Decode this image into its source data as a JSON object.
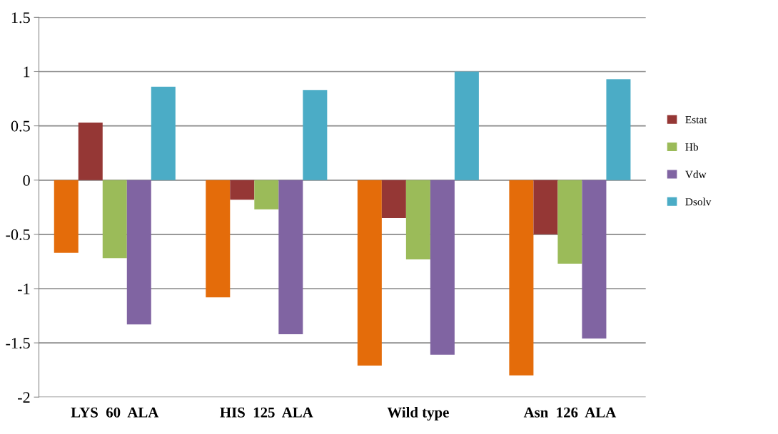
{
  "chart_data": {
    "type": "bar",
    "categories": [
      "LYS  60  ALA",
      "HIS  125  ALA",
      "Wild type",
      "Asn  126  ALA"
    ],
    "series": [
      {
        "color": "#e46c0a",
        "values": [
          -0.67,
          -1.08,
          -1.71,
          -1.8
        ]
      },
      {
        "name": "Estat",
        "color": "#953735",
        "values": [
          0.53,
          -0.18,
          -0.35,
          -0.5
        ]
      },
      {
        "name": "Hb",
        "color": "#9bbb59",
        "values": [
          -0.72,
          -0.27,
          -0.73,
          -0.77
        ]
      },
      {
        "name": "Vdw",
        "color": "#8064a2",
        "values": [
          -1.33,
          -1.42,
          -1.61,
          -1.46
        ]
      },
      {
        "name": "Dsolv",
        "color": "#4bacc6",
        "values": [
          0.86,
          0.83,
          1.0,
          0.93
        ]
      }
    ],
    "ylim": [
      -2,
      1.5
    ],
    "yticks": [
      -2,
      -1.5,
      -1,
      -0.5,
      0,
      0.5,
      1,
      1.5
    ],
    "grid": "y",
    "legend": "right"
  }
}
